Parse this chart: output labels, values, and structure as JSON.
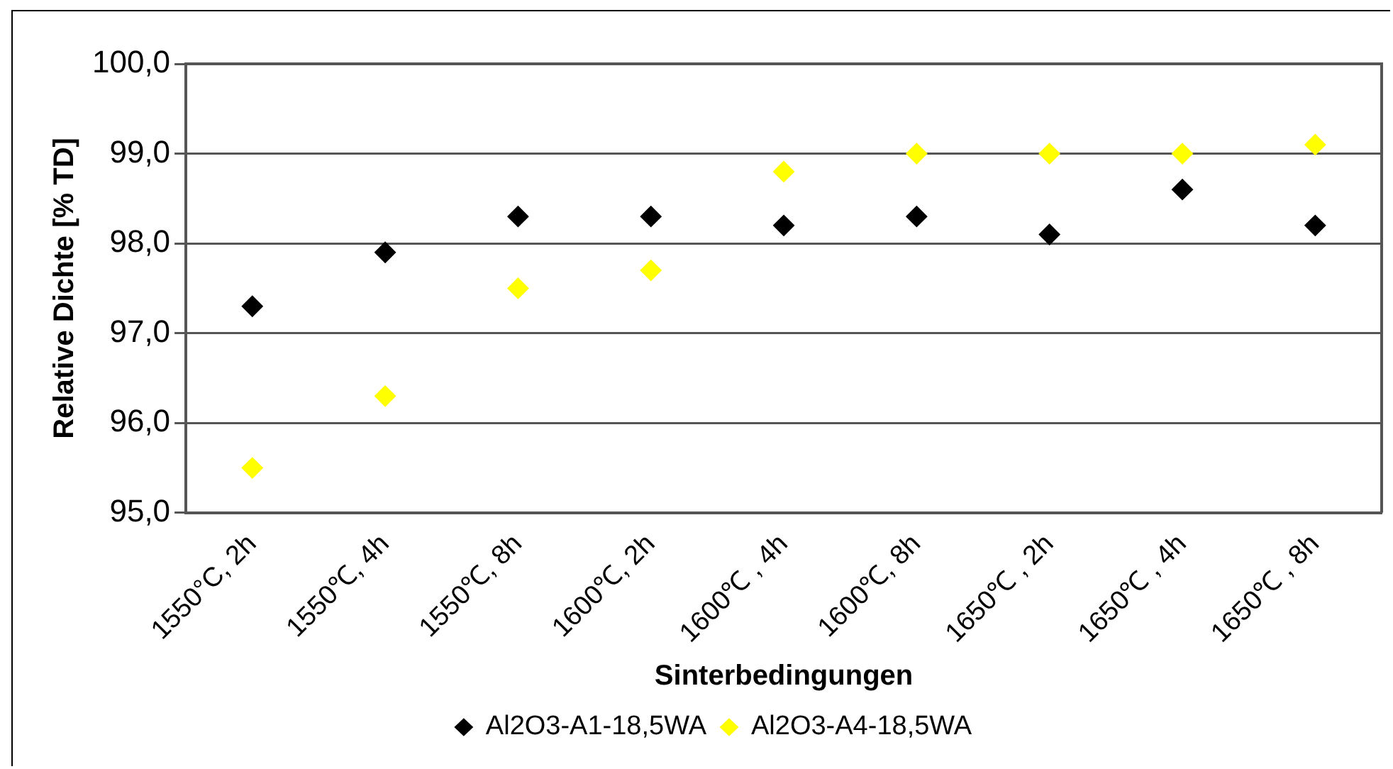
{
  "chart_data": {
    "type": "scatter",
    "xlabel": "Sinterbedingungen",
    "ylabel": "Relative Dichte [% TD]",
    "categories": [
      "1550°C, 2h",
      "1550℃, 4h",
      "1550℃, 8h",
      "1600℃, 2h",
      "1600℃ , 4h",
      "1600℃, 8h",
      "1650℃ , 2h",
      "1650℃ , 4h",
      "1650℃ , 8h"
    ],
    "series": [
      {
        "name": "Al2O3-A1-18,5WA",
        "color": "#000000",
        "values": [
          97.3,
          97.9,
          98.3,
          98.3,
          98.2,
          98.3,
          98.1,
          98.6,
          98.2
        ]
      },
      {
        "name": "Al2O3-A4-18,5WA",
        "color": "#ffff00",
        "values": [
          95.5,
          96.3,
          97.5,
          97.7,
          98.8,
          99.0,
          99.0,
          99.0,
          99.1
        ]
      }
    ],
    "ylim": [
      95,
      100
    ],
    "yticks": [
      {
        "value": 95,
        "label": "95,0"
      },
      {
        "value": 96,
        "label": "96,0"
      },
      {
        "value": 97,
        "label": "97,0"
      },
      {
        "value": 98,
        "label": "98,0"
      },
      {
        "value": 99,
        "label": "99,0"
      },
      {
        "value": 100,
        "label": "100,0"
      }
    ],
    "grid": "y",
    "legend": "bottom",
    "marker": "diamond"
  }
}
